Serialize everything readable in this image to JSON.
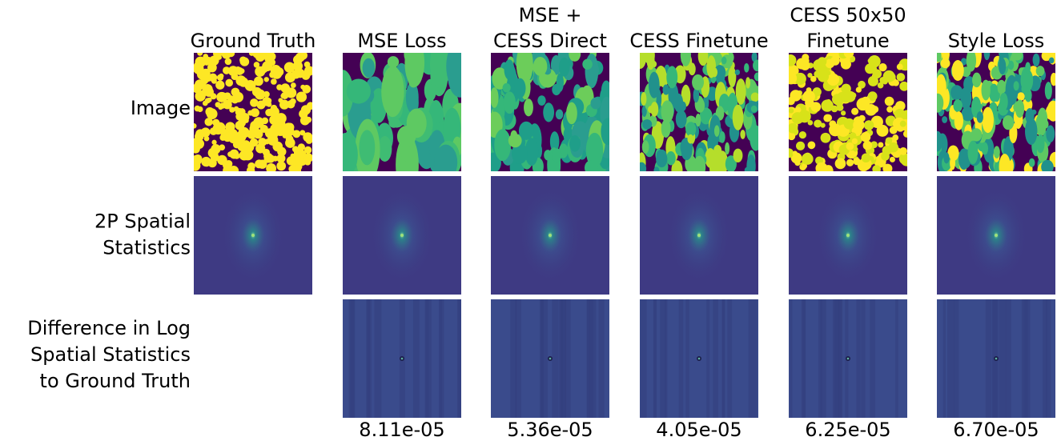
{
  "columns": [
    {
      "title": [
        "Ground Truth"
      ]
    },
    {
      "title": [
        "MSE Loss"
      ],
      "score": "8.11e-05"
    },
    {
      "title": [
        "MSE +",
        "CESS Direct"
      ],
      "score": "5.36e-05"
    },
    {
      "title": [
        "CESS Finetune"
      ],
      "score": "4.05e-05"
    },
    {
      "title": [
        "CESS 50x50",
        "Finetune"
      ],
      "score": "6.25e-05"
    },
    {
      "title": [
        "Style Loss"
      ],
      "score": "6.70e-05"
    }
  ],
  "rows": [
    {
      "label": [
        "Image"
      ]
    },
    {
      "label": [
        "2P Spatial",
        "Statistics"
      ]
    },
    {
      "label": [
        "Difference in Log",
        "Spatial Statistics",
        "to Ground Truth"
      ]
    }
  ]
}
